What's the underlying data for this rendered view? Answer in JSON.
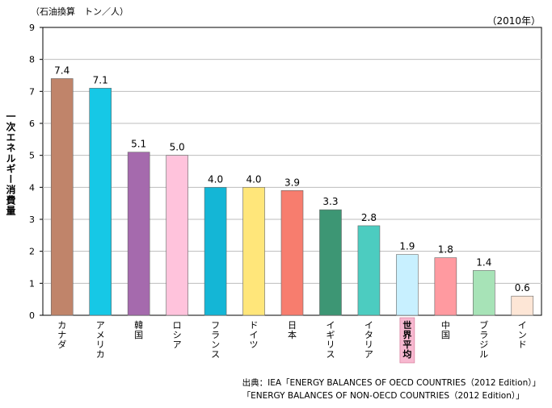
{
  "header": {
    "unit": "（石油換算　トン／人）",
    "year": "（2010年）"
  },
  "chart_data": {
    "type": "bar",
    "title": "",
    "ylabel": "一次エネルギー消費量",
    "xlabel": "",
    "ylim": [
      0,
      9
    ],
    "yticks": [
      0,
      1,
      2,
      3,
      4,
      5,
      6,
      7,
      8,
      9
    ],
    "grid": true,
    "categories": [
      "カナダ",
      "アメリカ",
      "韓国",
      "ロシア",
      "フランス",
      "ドイツ",
      "日本",
      "イギリス",
      "イタリア",
      "世界平均",
      "中国",
      "ブラジル",
      "インド"
    ],
    "values": [
      7.4,
      7.1,
      5.1,
      5.0,
      4.0,
      4.0,
      3.9,
      3.3,
      2.8,
      1.9,
      1.8,
      1.4,
      0.6
    ],
    "value_labels": [
      "7.4",
      "7.1",
      "5.1",
      "5.0",
      "4.0",
      "4.0",
      "3.9",
      "3.3",
      "2.8",
      "1.9",
      "1.8",
      "1.4",
      "0.6"
    ],
    "colors": [
      "#c0846a",
      "#16c8e6",
      "#a56aad",
      "#ffc3dc",
      "#14b6d6",
      "#ffe67a",
      "#f77d6e",
      "#3d9674",
      "#4cccc0",
      "#c8f0ff",
      "#ff9aa0",
      "#a7e3b7",
      "#fde6d6"
    ],
    "highlight_category": "世界平均",
    "highlight_color": "#f7b8d0"
  },
  "footer": {
    "source_line1": "出典：IEA「ENERGY BALANCES OF OECD COUNTRIES（2012 Edition）」",
    "source_line2": "「ENERGY BALANCES OF NON-OECD COUNTRIES（2012 Edition）」"
  }
}
